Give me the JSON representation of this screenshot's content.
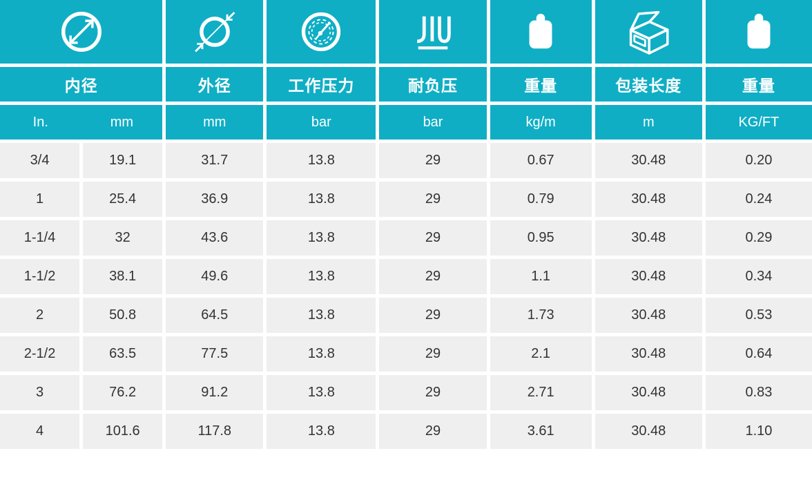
{
  "theme": {
    "teal": "#0FAEC5",
    "cell_bg": "#EFEFEF",
    "data_text": "#333333",
    "header_text": "#FFFFFF"
  },
  "table": {
    "columns": [
      {
        "icon": "inner-diameter-icon",
        "label": "内径",
        "units": [
          "In.",
          "mm"
        ],
        "span": 2
      },
      {
        "icon": "outer-diameter-icon",
        "label": "外径",
        "units": [
          "mm"
        ],
        "span": 1
      },
      {
        "icon": "pressure-gauge-icon",
        "label": "工作压力",
        "units": [
          "bar"
        ],
        "span": 1
      },
      {
        "icon": "vacuum-resistance-icon",
        "label": "耐负压",
        "units": [
          "bar"
        ],
        "span": 1
      },
      {
        "icon": "weight-per-meter-icon",
        "label": "重量",
        "units": [
          "kg/m"
        ],
        "span": 1
      },
      {
        "icon": "package-length-icon",
        "label": "包装长度",
        "units": [
          "m"
        ],
        "span": 1
      },
      {
        "icon": "weight-per-foot-icon",
        "label": "重量",
        "units": [
          "KG/FT"
        ],
        "span": 1
      }
    ],
    "rows": [
      [
        "3/4",
        "19.1",
        "31.7",
        "13.8",
        "29",
        "0.67",
        "30.48",
        "0.20"
      ],
      [
        "1",
        "25.4",
        "36.9",
        "13.8",
        "29",
        "0.79",
        "30.48",
        "0.24"
      ],
      [
        "1-1/4",
        "32",
        "43.6",
        "13.8",
        "29",
        "0.95",
        "30.48",
        "0.29"
      ],
      [
        "1-1/2",
        "38.1",
        "49.6",
        "13.8",
        "29",
        "1.1",
        "30.48",
        "0.34"
      ],
      [
        "2",
        "50.8",
        "64.5",
        "13.8",
        "29",
        "1.73",
        "30.48",
        "0.53"
      ],
      [
        "2-1/2",
        "63.5",
        "77.5",
        "13.8",
        "29",
        "2.1",
        "30.48",
        "0.64"
      ],
      [
        "3",
        "76.2",
        "91.2",
        "13.8",
        "29",
        "2.71",
        "30.48",
        "0.83"
      ],
      [
        "4",
        "101.6",
        "117.8",
        "13.8",
        "29",
        "3.61",
        "30.48",
        "1.10"
      ]
    ]
  }
}
